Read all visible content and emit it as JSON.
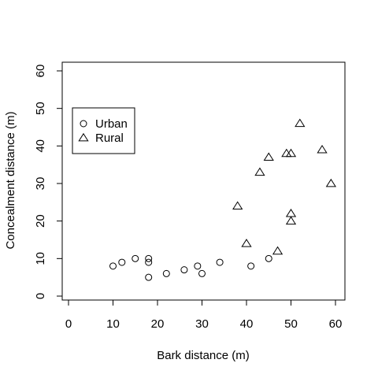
{
  "chart_data": {
    "type": "scatter",
    "title": "",
    "xlabel": "Bark distance (m)",
    "ylabel": "Concealment distance (m)",
    "xlim": [
      0,
      60
    ],
    "ylim": [
      0,
      60
    ],
    "xticks": [
      "0",
      "10",
      "20",
      "30",
      "40",
      "50",
      "60"
    ],
    "yticks": [
      "0",
      "10",
      "20",
      "30",
      "40",
      "50",
      "60"
    ],
    "grid": false,
    "legend_position": "top-left",
    "series": [
      {
        "name": "Urban",
        "marker": "circle",
        "points": [
          [
            10,
            8
          ],
          [
            12,
            9
          ],
          [
            15,
            10
          ],
          [
            18,
            10
          ],
          [
            18,
            9
          ],
          [
            18,
            5
          ],
          [
            22,
            6
          ],
          [
            26,
            7
          ],
          [
            29,
            8
          ],
          [
            30,
            6
          ],
          [
            34,
            9
          ],
          [
            41,
            8
          ],
          [
            45,
            10
          ]
        ]
      },
      {
        "name": "Rural",
        "marker": "triangle",
        "points": [
          [
            38,
            24
          ],
          [
            40,
            14
          ],
          [
            43,
            33
          ],
          [
            45,
            37
          ],
          [
            47,
            12
          ],
          [
            49,
            38
          ],
          [
            50,
            38
          ],
          [
            50,
            22
          ],
          [
            50,
            20
          ],
          [
            52,
            46
          ],
          [
            57,
            39
          ],
          [
            59,
            30
          ]
        ]
      }
    ]
  }
}
